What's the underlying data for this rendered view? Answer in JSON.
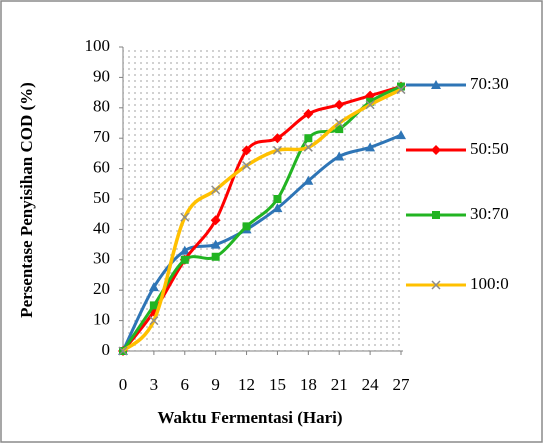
{
  "chart_data": {
    "type": "line",
    "xlabel": "Waktu Fermentasi (Hari)",
    "ylabel": "Persentase Penyisihan COD (%)",
    "x": [
      0,
      3,
      6,
      9,
      12,
      15,
      18,
      21,
      24,
      27
    ],
    "series": [
      {
        "name": "70:30",
        "color": "#2e75b6",
        "marker": "triangle",
        "marker_color": "#2e75b6",
        "values": [
          0,
          21,
          33,
          35,
          40,
          47,
          56,
          64,
          67,
          71
        ]
      },
      {
        "name": "50:50",
        "color": "#ff0000",
        "marker": "diamond",
        "marker_color": "#ff0000",
        "values": [
          0,
          13,
          30,
          43,
          66,
          70,
          78,
          81,
          84,
          87
        ]
      },
      {
        "name": "30:70",
        "color": "#22b422",
        "marker": "square",
        "marker_color": "#22b422",
        "values": [
          0,
          15,
          30,
          31,
          41,
          50,
          70,
          73,
          82,
          87
        ]
      },
      {
        "name": "100:0",
        "color": "#ffc000",
        "marker": "x",
        "marker_color": "#8c8c8c",
        "values": [
          0,
          10,
          44,
          53,
          61,
          66,
          67,
          75,
          81,
          86
        ]
      }
    ],
    "xlim": [
      0,
      27
    ],
    "xticks": [
      0,
      3,
      6,
      9,
      12,
      15,
      18,
      21,
      24,
      27
    ],
    "ylim": [
      0,
      100
    ],
    "yticks": [
      0,
      10,
      20,
      30,
      40,
      50,
      60,
      70,
      80,
      90,
      100
    ],
    "legend": "right"
  }
}
